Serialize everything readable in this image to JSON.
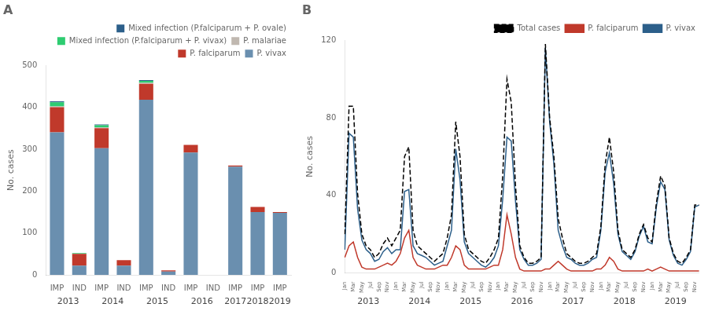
{
  "chart_data": [
    {
      "type": "bar",
      "title": "A",
      "ylabel": "No. cases",
      "stacked": true,
      "grid": false,
      "legend": "upper right",
      "categories": [
        "IMP",
        "IND",
        "IMP",
        "IND",
        "IMP",
        "IND",
        "IMP",
        "IND",
        "IMP",
        "IMP",
        "IMP"
      ],
      "annotations": [
        {
          "text": "2013",
          "span": 2
        },
        {
          "text": "2014",
          "span": 2
        },
        {
          "text": "2015",
          "span": 2
        },
        {
          "text": "2016",
          "span": 2
        },
        {
          "text": "2017",
          "span": 1
        },
        {
          "text": "2018",
          "span": 1
        },
        {
          "text": "2019",
          "span": 1
        }
      ],
      "series": [
        {
          "name": "P. vivax",
          "color": "#6a8faf",
          "values": [
            340,
            22,
            302,
            22,
            418,
            8,
            292,
            0,
            258,
            150,
            148
          ]
        },
        {
          "name": "P. falciparum",
          "color": "#c0392b",
          "values": [
            60,
            28,
            48,
            13,
            38,
            3,
            18,
            0,
            3,
            12,
            2
          ]
        },
        {
          "name": "P. malariae",
          "color": "#c0b8b0",
          "values": [
            2,
            0,
            2,
            0,
            2,
            0,
            0,
            0,
            0,
            0,
            0
          ]
        },
        {
          "name": "Mixed infection (P.falciparum + P. vivax)",
          "color": "#2ecc71",
          "values": [
            10,
            2,
            5,
            0,
            5,
            0,
            0,
            0,
            0,
            0,
            0
          ]
        },
        {
          "name": "Mixed infection (P.falciparum + P. ovale)",
          "color": "#2c5f8a",
          "values": [
            2,
            0,
            2,
            0,
            2,
            0,
            0,
            0,
            0,
            0,
            0
          ]
        }
      ],
      "ylim": [
        0,
        500
      ],
      "yticks": [
        0,
        100,
        200,
        300,
        400,
        500
      ]
    },
    {
      "type": "line",
      "title": "B",
      "ylabel": "No. cases",
      "grid": false,
      "legend": "upper right",
      "categories": [
        "Jan",
        null,
        "Mar",
        null,
        "May",
        null,
        "Jul",
        null,
        "Sep",
        null,
        "Nov",
        null,
        "Jan",
        null,
        "Mar",
        null,
        "May",
        null,
        "Jul",
        null,
        "Sep",
        null,
        "Nov",
        null,
        "Jan",
        null,
        "Mar",
        null,
        "May",
        null,
        "Jul",
        null,
        "Sep",
        null,
        "Nov",
        null,
        "Jan",
        null,
        "Mar",
        null,
        "May",
        null,
        "Jul",
        null,
        "Sep",
        null,
        "Nov",
        null,
        "Jan",
        null,
        "Mar",
        null,
        "May",
        null,
        "Jul",
        null,
        "Sep",
        null,
        "Nov",
        null,
        "Jan",
        null,
        "Mar",
        null,
        "May",
        null,
        "Jul",
        null,
        "Sep",
        null,
        "Nov",
        null,
        "Jan",
        null,
        "Mar",
        null,
        "May",
        null,
        "Jul",
        null,
        "Sep",
        null,
        "Nov",
        null
      ],
      "annotations": [
        {
          "text": "2013",
          "span": 12
        },
        {
          "text": "2014",
          "span": 12
        },
        {
          "text": "2015",
          "span": 12
        },
        {
          "text": "2016",
          "span": 12
        },
        {
          "text": "2017",
          "span": 12
        },
        {
          "text": "2018",
          "span": 12
        },
        {
          "text": "2019",
          "span": 12
        }
      ],
      "series": [
        {
          "name": "Total cases",
          "color": "#000000",
          "line_style": "dashed",
          "values": [
            20,
            86,
            86,
            41,
            20,
            14,
            12,
            8,
            10,
            15,
            18,
            14,
            18,
            22,
            60,
            65,
            22,
            14,
            12,
            10,
            8,
            6,
            8,
            10,
            18,
            30,
            78,
            60,
            20,
            12,
            10,
            8,
            6,
            5,
            8,
            12,
            18,
            50,
            100,
            88,
            45,
            14,
            8,
            5,
            5,
            6,
            8,
            118,
            80,
            60,
            28,
            18,
            10,
            8,
            6,
            5,
            5,
            6,
            8,
            10,
            24,
            56,
            70,
            52,
            22,
            12,
            10,
            8,
            12,
            20,
            25,
            18,
            16,
            36,
            50,
            45,
            18,
            10,
            6,
            5,
            8,
            12,
            35,
            35
          ]
        },
        {
          "name": "P. falciparum",
          "color": "#c0392b",
          "line_style": "solid",
          "values": [
            8,
            14,
            16,
            8,
            3,
            2,
            2,
            2,
            3,
            4,
            5,
            4,
            6,
            10,
            18,
            22,
            8,
            4,
            3,
            2,
            2,
            2,
            3,
            4,
            4,
            8,
            14,
            12,
            4,
            2,
            2,
            2,
            2,
            2,
            3,
            4,
            4,
            12,
            30,
            20,
            8,
            2,
            1,
            1,
            1,
            1,
            1,
            2,
            2,
            4,
            6,
            4,
            2,
            1,
            1,
            1,
            1,
            1,
            1,
            2,
            2,
            4,
            8,
            6,
            2,
            1,
            1,
            1,
            1,
            1,
            1,
            2,
            1,
            2,
            3,
            2,
            1,
            1,
            1,
            1,
            1,
            1,
            1,
            1
          ]
        },
        {
          "name": "P. vivax",
          "color": "#2c5f8a",
          "line_style": "solid",
          "values": [
            12,
            72,
            70,
            33,
            17,
            12,
            10,
            6,
            7,
            11,
            13,
            10,
            12,
            12,
            42,
            43,
            14,
            10,
            9,
            8,
            6,
            4,
            5,
            6,
            14,
            22,
            64,
            48,
            16,
            10,
            8,
            6,
            4,
            3,
            5,
            8,
            14,
            38,
            70,
            68,
            37,
            12,
            7,
            4,
            4,
            5,
            7,
            116,
            78,
            56,
            22,
            14,
            8,
            7,
            5,
            4,
            4,
            5,
            7,
            8,
            22,
            52,
            62,
            46,
            20,
            11,
            9,
            7,
            11,
            19,
            24,
            16,
            15,
            34,
            47,
            43,
            17,
            9,
            5,
            4,
            7,
            11,
            34,
            35
          ]
        }
      ],
      "ylim": [
        0,
        120
      ],
      "yticks": [
        0,
        40,
        80,
        120
      ]
    }
  ]
}
